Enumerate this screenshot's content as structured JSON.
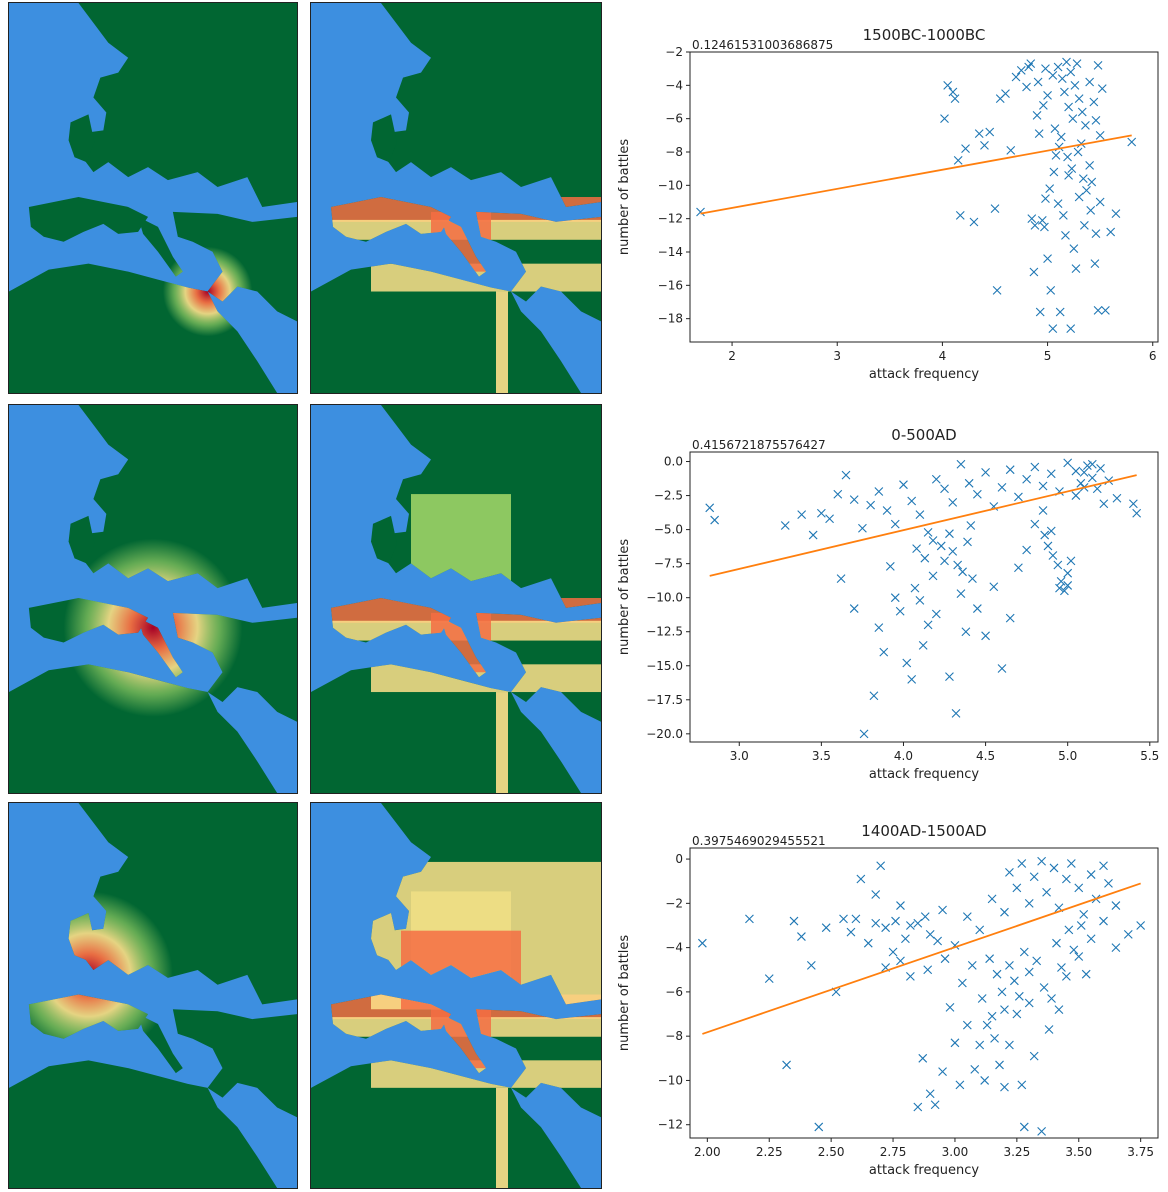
{
  "colors": {
    "ocean": "#3d8fe0",
    "land": "#016632",
    "heat_low": "#a6d96a",
    "heat_mid": "#fee08b",
    "heat_high": "#f46d43",
    "heat_peak": "#a50026",
    "scatter_marker": "#1f77b4",
    "fit_line": "#ff7f0e"
  },
  "maps": {
    "rows": [
      {
        "left": "concentrated heatmap around eastern Mediterranean",
        "right": "coastal heat along Mediterranean and Nile"
      },
      {
        "left": "heatmap centered on Italy and central Mediterranean",
        "right": "heat across Europe, light green in northeast"
      },
      {
        "left": "heatmap centered on western Europe",
        "right": "heat across Europe and Asia steppe"
      }
    ]
  },
  "charts": [
    {
      "title": "1500BC-1000BC",
      "corr": "0.12461531003686875",
      "xlabel": "attack frequency",
      "ylabel": "number of battles"
    },
    {
      "title": "0-500AD",
      "corr": "0.4156721875576427",
      "xlabel": "attack frequency",
      "ylabel": "number of battles"
    },
    {
      "title": "1400AD-1500AD",
      "corr": "0.3975469029455521",
      "xlabel": "attack frequency",
      "ylabel": "number of battles"
    }
  ],
  "chart_data": [
    {
      "type": "scatter",
      "title": "1500BC-1000BC",
      "xlabel": "attack frequency",
      "ylabel": "number of battles",
      "xlim": [
        1.6,
        6.05
      ],
      "ylim": [
        -19.4,
        -2.0
      ],
      "xticks": [
        2,
        3,
        4,
        5,
        6
      ],
      "yticks": [
        -2,
        -4,
        -6,
        -8,
        -10,
        -12,
        -14,
        -16,
        -18
      ],
      "fit": {
        "x": [
          1.7,
          5.8
        ],
        "y": [
          -11.7,
          -7.0
        ]
      },
      "points": [
        [
          1.7,
          -11.6
        ],
        [
          4.02,
          -6.0
        ],
        [
          4.15,
          -8.5
        ],
        [
          4.17,
          -11.8
        ],
        [
          4.3,
          -12.2
        ],
        [
          4.22,
          -7.8
        ],
        [
          4.35,
          -6.9
        ],
        [
          4.4,
          -7.6
        ],
        [
          4.45,
          -6.8
        ],
        [
          4.5,
          -11.4
        ],
        [
          4.52,
          -16.3
        ],
        [
          4.55,
          -4.8
        ],
        [
          4.6,
          -4.5
        ],
        [
          4.65,
          -7.9
        ],
        [
          4.7,
          -3.5
        ],
        [
          4.75,
          -3.1
        ],
        [
          4.8,
          -4.1
        ],
        [
          4.82,
          -2.9
        ],
        [
          4.85,
          -12.0
        ],
        [
          4.88,
          -12.4
        ],
        [
          4.9,
          -5.8
        ],
        [
          4.92,
          -6.9
        ],
        [
          4.95,
          -12.1
        ],
        [
          4.97,
          -12.5
        ],
        [
          5.0,
          -14.4
        ],
        [
          5.02,
          -10.2
        ],
        [
          5.03,
          -16.3
        ],
        [
          5.05,
          -18.6
        ],
        [
          5.08,
          -8.2
        ],
        [
          5.1,
          -11.1
        ],
        [
          5.12,
          -17.6
        ],
        [
          5.15,
          -11.8
        ],
        [
          5.17,
          -13.0
        ],
        [
          5.2,
          -9.4
        ],
        [
          5.22,
          -18.6
        ],
        [
          5.25,
          -13.8
        ],
        [
          5.27,
          -15.0
        ],
        [
          5.3,
          -10.7
        ],
        [
          5.32,
          -7.5
        ],
        [
          5.35,
          -12.4
        ],
        [
          5.4,
          -8.8
        ],
        [
          5.42,
          -9.8
        ],
        [
          5.45,
          -14.7
        ],
        [
          5.48,
          -17.5
        ],
        [
          5.5,
          -11.0
        ],
        [
          5.55,
          -17.5
        ],
        [
          5.6,
          -12.8
        ],
        [
          5.65,
          -11.7
        ],
        [
          5.8,
          -7.4
        ],
        [
          4.05,
          -4.0
        ],
        [
          4.1,
          -4.4
        ],
        [
          4.12,
          -4.8
        ],
        [
          4.87,
          -15.2
        ],
        [
          4.93,
          -17.6
        ],
        [
          4.98,
          -10.8
        ],
        [
          5.06,
          -9.2
        ],
        [
          5.13,
          -7.1
        ],
        [
          5.18,
          -2.6
        ],
        [
          5.22,
          -3.2
        ],
        [
          5.26,
          -4.0
        ],
        [
          5.3,
          -4.8
        ],
        [
          5.33,
          -5.6
        ],
        [
          5.36,
          -6.4
        ],
        [
          5.4,
          -3.8
        ],
        [
          5.44,
          -5.0
        ],
        [
          5.46,
          -6.1
        ],
        [
          5.48,
          -2.8
        ],
        [
          5.5,
          -7.0
        ],
        [
          5.52,
          -4.2
        ],
        [
          5.28,
          -2.7
        ],
        [
          5.24,
          -6.0
        ],
        [
          5.2,
          -5.3
        ],
        [
          5.16,
          -4.4
        ],
        [
          5.14,
          -3.6
        ],
        [
          5.1,
          -2.9
        ],
        [
          5.05,
          -3.4
        ],
        [
          5.0,
          -4.6
        ],
        [
          4.96,
          -5.2
        ],
        [
          5.07,
          -6.6
        ],
        [
          5.11,
          -7.7
        ],
        [
          5.19,
          -8.3
        ],
        [
          5.23,
          -9.0
        ],
        [
          5.29,
          -8.0
        ],
        [
          5.34,
          -9.6
        ],
        [
          5.37,
          -10.3
        ],
        [
          5.41,
          -11.5
        ],
        [
          5.46,
          -12.9
        ],
        [
          4.98,
          -3.0
        ],
        [
          4.91,
          -3.8
        ],
        [
          4.84,
          -2.7
        ]
      ]
    },
    {
      "type": "scatter",
      "title": "0-500AD",
      "xlabel": "attack frequency",
      "ylabel": "number of battles",
      "xlim": [
        2.7,
        5.55
      ],
      "ylim": [
        -20.6,
        0.7
      ],
      "xticks": [
        3.0,
        3.5,
        4.0,
        4.5,
        5.0,
        5.5
      ],
      "yticks": [
        0.0,
        -2.5,
        -5.0,
        -7.5,
        -10.0,
        -12.5,
        -15.0,
        -17.5,
        -20.0
      ],
      "fit": {
        "x": [
          2.82,
          5.42
        ],
        "y": [
          -8.4,
          -1.0
        ]
      },
      "points": [
        [
          2.82,
          -3.4
        ],
        [
          2.85,
          -4.3
        ],
        [
          3.28,
          -4.7
        ],
        [
          3.62,
          -8.6
        ],
        [
          3.7,
          -10.8
        ],
        [
          3.76,
          -20.0
        ],
        [
          3.82,
          -17.2
        ],
        [
          3.85,
          -12.2
        ],
        [
          3.88,
          -14.0
        ],
        [
          3.95,
          -10.0
        ],
        [
          3.98,
          -11.0
        ],
        [
          4.02,
          -14.8
        ],
        [
          4.05,
          -16.0
        ],
        [
          4.07,
          -9.3
        ],
        [
          4.1,
          -10.2
        ],
        [
          4.12,
          -13.5
        ],
        [
          4.15,
          -12.0
        ],
        [
          4.18,
          -8.4
        ],
        [
          4.2,
          -11.2
        ],
        [
          4.25,
          -7.3
        ],
        [
          4.28,
          -15.8
        ],
        [
          4.32,
          -18.5
        ],
        [
          4.35,
          -9.7
        ],
        [
          4.38,
          -12.5
        ],
        [
          4.42,
          -8.6
        ],
        [
          4.45,
          -10.8
        ],
        [
          4.5,
          -12.8
        ],
        [
          4.55,
          -9.2
        ],
        [
          4.6,
          -15.2
        ],
        [
          4.65,
          -11.5
        ],
        [
          4.7,
          -7.8
        ],
        [
          4.75,
          -6.5
        ],
        [
          4.8,
          -4.6
        ],
        [
          4.85,
          -3.6
        ],
        [
          4.9,
          -5.1
        ],
        [
          4.95,
          -9.3
        ],
        [
          5.0,
          -8.2
        ],
        [
          5.02,
          -7.3
        ],
        [
          5.05,
          -2.5
        ],
        [
          5.08,
          -1.6
        ],
        [
          5.1,
          -0.8
        ],
        [
          5.12,
          -0.3
        ],
        [
          5.15,
          -1.2
        ],
        [
          5.18,
          -2.0
        ],
        [
          5.2,
          -0.5
        ],
        [
          5.22,
          -3.1
        ],
        [
          5.25,
          -1.4
        ],
        [
          5.3,
          -2.7
        ],
        [
          5.4,
          -3.1
        ],
        [
          5.42,
          -3.8
        ],
        [
          3.5,
          -3.8
        ],
        [
          3.55,
          -4.2
        ],
        [
          3.6,
          -2.4
        ],
        [
          3.65,
          -1.0
        ],
        [
          3.7,
          -2.8
        ],
        [
          3.75,
          -4.9
        ],
        [
          3.8,
          -3.2
        ],
        [
          3.85,
          -2.2
        ],
        [
          3.9,
          -3.6
        ],
        [
          3.95,
          -4.6
        ],
        [
          4.0,
          -1.7
        ],
        [
          4.05,
          -2.9
        ],
        [
          4.1,
          -3.9
        ],
        [
          4.15,
          -5.2
        ],
        [
          4.2,
          -1.3
        ],
        [
          4.25,
          -2.0
        ],
        [
          4.3,
          -3.0
        ],
        [
          4.35,
          -0.2
        ],
        [
          4.4,
          -1.6
        ],
        [
          4.45,
          -2.4
        ],
        [
          4.5,
          -0.8
        ],
        [
          4.55,
          -3.3
        ],
        [
          4.6,
          -1.9
        ],
        [
          4.65,
          -0.6
        ],
        [
          4.7,
          -2.6
        ],
        [
          4.75,
          -1.3
        ],
        [
          4.8,
          -0.4
        ],
        [
          4.85,
          -1.8
        ],
        [
          4.9,
          -0.9
        ],
        [
          4.95,
          -2.2
        ],
        [
          5.0,
          -0.1
        ],
        [
          5.05,
          -0.7
        ],
        [
          5.1,
          -1.9
        ],
        [
          5.15,
          -0.2
        ],
        [
          4.3,
          -6.6
        ],
        [
          4.33,
          -7.6
        ],
        [
          4.36,
          -8.1
        ],
        [
          4.39,
          -5.9
        ],
        [
          4.28,
          -5.3
        ],
        [
          4.41,
          -4.7
        ],
        [
          4.23,
          -6.2
        ],
        [
          4.18,
          -5.8
        ],
        [
          4.13,
          -7.1
        ],
        [
          4.08,
          -6.4
        ],
        [
          4.98,
          -9.5
        ],
        [
          5.0,
          -9.1
        ],
        [
          4.96,
          -8.8
        ],
        [
          4.94,
          -7.6
        ],
        [
          4.91,
          -6.9
        ],
        [
          4.88,
          -6.2
        ],
        [
          4.86,
          -5.4
        ],
        [
          3.45,
          -5.4
        ],
        [
          3.38,
          -3.9
        ],
        [
          3.92,
          -7.7
        ]
      ]
    },
    {
      "type": "scatter",
      "title": "1400AD-1500AD",
      "xlabel": "attack frequency",
      "ylabel": "number of battles",
      "xlim": [
        1.93,
        3.82
      ],
      "ylim": [
        -12.6,
        0.5
      ],
      "xticks": [
        2.0,
        2.25,
        2.5,
        2.75,
        3.0,
        3.25,
        3.5,
        3.75
      ],
      "yticks": [
        0,
        -2,
        -4,
        -6,
        -8,
        -10,
        -12
      ],
      "fit": {
        "x": [
          1.98,
          3.75
        ],
        "y": [
          -7.9,
          -1.1
        ]
      },
      "points": [
        [
          1.98,
          -3.8
        ],
        [
          2.17,
          -2.7
        ],
        [
          2.25,
          -5.4
        ],
        [
          2.32,
          -9.3
        ],
        [
          2.35,
          -2.8
        ],
        [
          2.38,
          -3.5
        ],
        [
          2.42,
          -4.8
        ],
        [
          2.45,
          -12.1
        ],
        [
          2.48,
          -3.1
        ],
        [
          2.52,
          -6.0
        ],
        [
          2.55,
          -2.7
        ],
        [
          2.58,
          -3.3
        ],
        [
          2.62,
          -0.9
        ],
        [
          2.65,
          -3.8
        ],
        [
          2.68,
          -1.6
        ],
        [
          2.7,
          -0.3
        ],
        [
          2.72,
          -3.1
        ],
        [
          2.75,
          -4.2
        ],
        [
          2.78,
          -2.1
        ],
        [
          2.8,
          -3.6
        ],
        [
          2.82,
          -5.3
        ],
        [
          2.85,
          -11.2
        ],
        [
          2.87,
          -9.0
        ],
        [
          2.9,
          -10.6
        ],
        [
          2.92,
          -11.1
        ],
        [
          2.95,
          -9.6
        ],
        [
          2.98,
          -6.7
        ],
        [
          3.0,
          -8.3
        ],
        [
          3.02,
          -10.2
        ],
        [
          3.05,
          -7.5
        ],
        [
          3.08,
          -9.5
        ],
        [
          3.1,
          -8.4
        ],
        [
          3.12,
          -10.0
        ],
        [
          3.15,
          -7.1
        ],
        [
          3.18,
          -9.3
        ],
        [
          3.2,
          -10.3
        ],
        [
          3.22,
          -8.4
        ],
        [
          3.25,
          -7.0
        ],
        [
          3.27,
          -10.2
        ],
        [
          3.28,
          -12.1
        ],
        [
          3.3,
          -6.5
        ],
        [
          3.32,
          -8.9
        ],
        [
          3.35,
          -12.3
        ],
        [
          3.38,
          -7.7
        ],
        [
          3.42,
          -6.8
        ],
        [
          3.45,
          -5.3
        ],
        [
          3.5,
          -4.4
        ],
        [
          3.55,
          -3.6
        ],
        [
          3.6,
          -2.8
        ],
        [
          3.65,
          -4.0
        ],
        [
          3.7,
          -3.4
        ],
        [
          3.75,
          -3.0
        ],
        [
          2.85,
          -2.9
        ],
        [
          2.9,
          -3.4
        ],
        [
          2.95,
          -2.3
        ],
        [
          3.0,
          -3.9
        ],
        [
          3.05,
          -2.6
        ],
        [
          3.1,
          -3.2
        ],
        [
          3.15,
          -1.8
        ],
        [
          3.2,
          -2.4
        ],
        [
          3.22,
          -0.6
        ],
        [
          3.25,
          -1.3
        ],
        [
          3.27,
          -0.2
        ],
        [
          3.3,
          -2.0
        ],
        [
          3.32,
          -0.8
        ],
        [
          3.35,
          -0.1
        ],
        [
          3.37,
          -1.5
        ],
        [
          3.4,
          -0.4
        ],
        [
          3.42,
          -2.2
        ],
        [
          3.45,
          -0.9
        ],
        [
          3.47,
          -0.2
        ],
        [
          3.5,
          -1.3
        ],
        [
          3.52,
          -2.5
        ],
        [
          3.55,
          -0.7
        ],
        [
          3.57,
          -1.8
        ],
        [
          3.6,
          -0.3
        ],
        [
          3.62,
          -1.1
        ],
        [
          3.65,
          -2.1
        ],
        [
          3.28,
          -4.2
        ],
        [
          3.3,
          -5.1
        ],
        [
          3.33,
          -4.6
        ],
        [
          3.36,
          -5.8
        ],
        [
          3.26,
          -6.2
        ],
        [
          3.24,
          -5.5
        ],
        [
          3.22,
          -4.8
        ],
        [
          3.19,
          -6.0
        ],
        [
          3.17,
          -5.2
        ],
        [
          3.14,
          -4.5
        ],
        [
          3.39,
          -6.3
        ],
        [
          3.41,
          -3.8
        ],
        [
          3.43,
          -4.9
        ],
        [
          3.46,
          -3.2
        ],
        [
          3.48,
          -4.1
        ],
        [
          3.51,
          -3.0
        ],
        [
          3.53,
          -5.2
        ],
        [
          2.6,
          -2.7
        ],
        [
          2.68,
          -2.9
        ],
        [
          2.76,
          -2.8
        ],
        [
          2.82,
          -3.0
        ],
        [
          2.88,
          -2.6
        ],
        [
          2.93,
          -3.7
        ],
        [
          2.96,
          -4.5
        ],
        [
          3.03,
          -5.6
        ],
        [
          3.07,
          -4.8
        ],
        [
          3.11,
          -6.3
        ],
        [
          3.13,
          -7.5
        ],
        [
          3.16,
          -8.1
        ],
        [
          3.2,
          -6.8
        ],
        [
          2.72,
          -4.9
        ],
        [
          2.78,
          -4.6
        ],
        [
          2.89,
          -5.0
        ]
      ]
    }
  ]
}
